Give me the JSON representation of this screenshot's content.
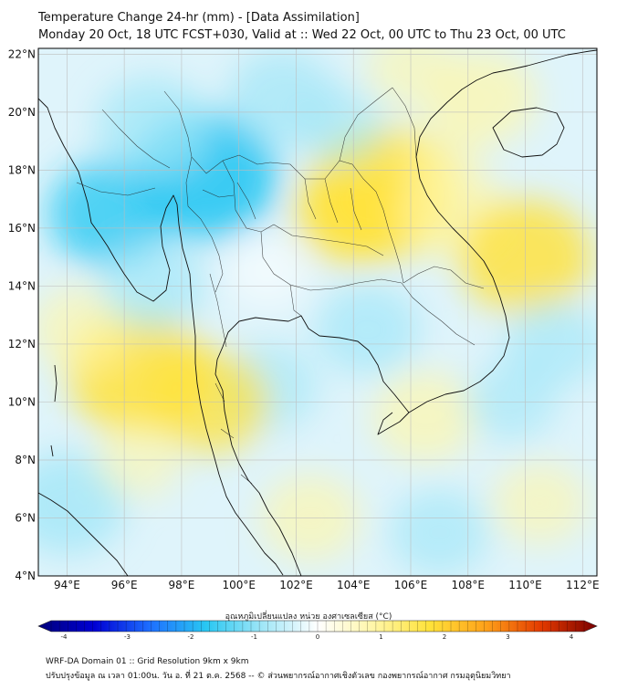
{
  "header": {
    "title_line1": "Temperature Change 24-hr (mm) - [Data Assimilation]",
    "title_line2": "Monday 20 Oct, 18 UTC FCST+030, Valid at :: Wed 22 Oct, 00 UTC to Thu 23 Oct, 00 UTC"
  },
  "map": {
    "lon_labels": [
      "94°E",
      "96°E",
      "98°E",
      "100°E",
      "102°E",
      "104°E",
      "106°E",
      "108°E",
      "110°E",
      "112°E"
    ],
    "lat_labels": [
      "22°N",
      "20°N",
      "18°N",
      "16°N",
      "14°N",
      "12°N",
      "10°N",
      "8°N",
      "6°N",
      "4°N"
    ],
    "lon_range": [
      93,
      112.5
    ],
    "lat_range": [
      4,
      22.2
    ],
    "anomalies": [
      {
        "region": "north-myanmar-laos",
        "lon": 98.8,
        "lat": 17.8,
        "value": -1.8
      },
      {
        "region": "andaman-north",
        "lon": 95.5,
        "lat": 16.5,
        "value": -1.3
      },
      {
        "region": "west-coast-myanmar",
        "lon": 97.0,
        "lat": 19.5,
        "value": -1.1
      },
      {
        "region": "thailand-northeast",
        "lon": 104.0,
        "lat": 16.5,
        "value": 1.2
      },
      {
        "region": "laos-east",
        "lon": 105.0,
        "lat": 17.2,
        "value": 1.9
      },
      {
        "region": "vietnam-central",
        "lon": 107.5,
        "lat": 16.5,
        "value": 1.0
      },
      {
        "region": "south-china-sea-east",
        "lon": 110.0,
        "lat": 15.0,
        "value": 1.5
      },
      {
        "region": "gulf-hainan",
        "lon": 108.5,
        "lat": 20.5,
        "value": 1.0
      },
      {
        "region": "north-edge",
        "lon": 106.0,
        "lat": 21.5,
        "value": 0.6
      },
      {
        "region": "andaman-sea",
        "lon": 96.5,
        "lat": 11.0,
        "value": 1.7
      },
      {
        "region": "bay-of-bengal-south",
        "lon": 94.5,
        "lat": 12.5,
        "value": 0.8
      },
      {
        "region": "gulf-of-thailand",
        "lon": 101.0,
        "lat": 10.5,
        "value": -0.8
      },
      {
        "region": "isthmus-kra",
        "lon": 99.0,
        "lat": 10.0,
        "value": 1.2
      },
      {
        "region": "cambodia",
        "lon": 104.5,
        "lat": 12.5,
        "value": -0.9
      },
      {
        "region": "south-vietnam-sea",
        "lon": 106.5,
        "lat": 9.5,
        "value": 0.9
      },
      {
        "region": "se-scs",
        "lon": 109.5,
        "lat": 10.0,
        "value": -0.6
      },
      {
        "region": "east-scs",
        "lon": 111.0,
        "lat": 12.0,
        "value": -0.8
      },
      {
        "region": "sumatra-north",
        "lon": 94.0,
        "lat": 6.5,
        "value": -1.2
      },
      {
        "region": "malaysia",
        "lon": 102.5,
        "lat": 6.0,
        "value": 0.8
      },
      {
        "region": "south-scs",
        "lon": 107.0,
        "lat": 5.5,
        "value": -0.8
      },
      {
        "region": "far-southeast",
        "lon": 110.5,
        "lat": 6.5,
        "value": 0.7
      },
      {
        "region": "andaman-central",
        "lon": 97.0,
        "lat": 14.0,
        "value": -0.9
      },
      {
        "region": "central-thailand",
        "lon": 101.0,
        "lat": 14.5,
        "value": -0.4
      },
      {
        "region": "south-andaman",
        "lon": 96.5,
        "lat": 8.0,
        "value": 0.5
      },
      {
        "region": "north-central",
        "lon": 101.5,
        "lat": 20.5,
        "value": -1.0
      },
      {
        "region": "laos-north",
        "lon": 103.5,
        "lat": 19.5,
        "value": -0.6
      },
      {
        "region": "tonkin",
        "lon": 107.0,
        "lat": 18.5,
        "value": 0.4
      }
    ]
  },
  "colorbar": {
    "label": "อุณหภูมิเปลี่ยนแปลง หน่วย องศาเซลเซียส (°C)",
    "tick_labels": [
      "-4",
      "-3",
      "-2",
      "-1",
      "0",
      "1",
      "2",
      "3",
      "4"
    ],
    "range": [
      -4,
      4
    ],
    "colors": [
      "#00007a",
      "#0000d4",
      "#1e6fff",
      "#29c7f2",
      "#9fe6f7",
      "#ffffff",
      "#fff6a8",
      "#ffe23a",
      "#ffa21a",
      "#e33a00",
      "#7a0000"
    ]
  },
  "footer": {
    "line1": "WRF-DA Domain 01 :: Grid Resolution 9km x 9km",
    "line2": "ปรับปรุงข้อมูล ณ เวลา 01:00น. วัน อ. ที่ 21 ต.ค. 2568 -- © ส่วนพยากรณ์อากาศเชิงตัวเลข กองพยากรณ์อากาศ กรมอุตุนิยมวิทยา"
  }
}
